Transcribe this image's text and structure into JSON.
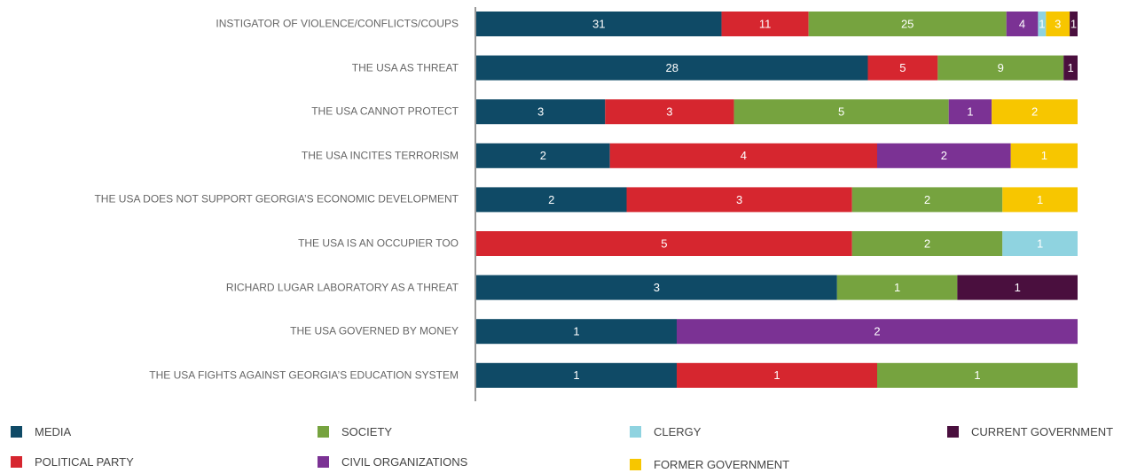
{
  "chart_data": {
    "type": "bar",
    "orientation": "horizontal",
    "stacking": "percent",
    "categories": [
      "INSTIGATOR OF VIOLENCE/CONFLICTS/COUPS",
      "THE USA AS THREAT",
      "THE USA CANNOT PROTECT",
      "THE USA INCITES TERRORISM",
      "THE USA DOES NOT SUPPORT GEORGIA’S ECONOMIC DEVELOPMENT",
      "THE USA IS AN OCCUPIER TOO",
      "RICHARD LUGAR LABORATORY AS A THREAT",
      "THE USA GOVERNED BY MONEY",
      "THE USA FIGHTS AGAINST GEORGIA’S EDUCATION SYSTEM"
    ],
    "series": [
      {
        "name": "MEDIA",
        "color": "#0f4a66",
        "values": [
          31,
          28,
          3,
          2,
          2,
          null,
          3,
          1,
          1
        ]
      },
      {
        "name": "POLITICAL PARTY",
        "color": "#d6262f",
        "values": [
          11,
          5,
          3,
          4,
          3,
          5,
          null,
          null,
          1
        ]
      },
      {
        "name": "SOCIETY",
        "color": "#76a33f",
        "values": [
          25,
          9,
          5,
          null,
          2,
          2,
          1,
          null,
          1
        ]
      },
      {
        "name": "CIVIL ORGANIZATIONS",
        "color": "#7b3294",
        "values": [
          4,
          null,
          1,
          2,
          null,
          null,
          null,
          2,
          null
        ]
      },
      {
        "name": "CLERGY",
        "color": "#8fd3e0",
        "values": [
          1,
          null,
          null,
          null,
          null,
          1,
          null,
          null,
          null
        ]
      },
      {
        "name": "FORMER GOVERNMENT",
        "color": "#f7c600",
        "values": [
          3,
          null,
          2,
          1,
          1,
          null,
          null,
          null,
          null
        ]
      },
      {
        "name": "CURRENT GOVERNMENT",
        "color": "#4a0f3e",
        "values": [
          1,
          1,
          null,
          null,
          null,
          null,
          1,
          null,
          null
        ]
      }
    ]
  }
}
